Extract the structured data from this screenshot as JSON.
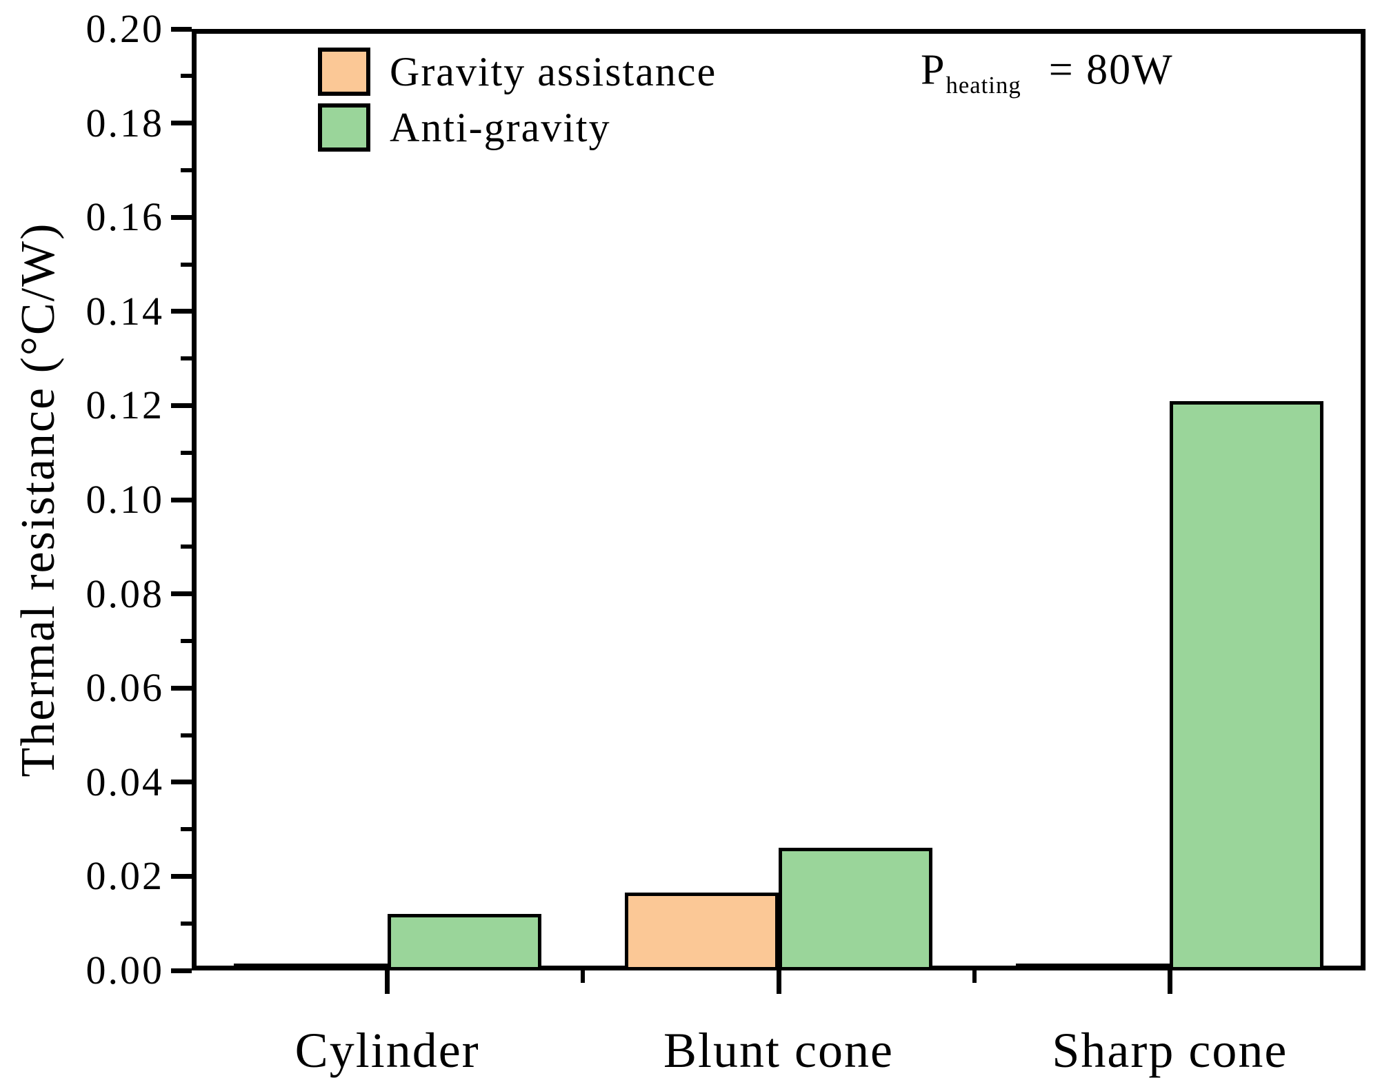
{
  "figure": {
    "background": "#ffffff",
    "axis_color": "#000000"
  },
  "chart_data": {
    "type": "bar",
    "title": "",
    "xlabel": "",
    "ylabel": "Thermal resistance (°C/W)",
    "categories": [
      "Cylinder",
      "Blunt cone",
      "Sharp cone"
    ],
    "series": [
      {
        "name": "Gravity assistance",
        "color": "#FBC896",
        "values": [
          0.001,
          0.0165,
          0.001
        ]
      },
      {
        "name": "Anti-gravity",
        "color": "#9AD59A",
        "values": [
          0.012,
          0.026,
          0.121
        ]
      }
    ],
    "bar_edge_color": "#000000",
    "ylim": [
      0,
      0.2
    ],
    "ytick_step": 0.02,
    "yminor_step": 0.01,
    "ytick_labels": [
      "0.00",
      "0.02",
      "0.04",
      "0.06",
      "0.08",
      "0.10",
      "0.12",
      "0.14",
      "0.16",
      "0.18",
      "0.20"
    ],
    "grid": false,
    "legend": {
      "position": "top-left-inside",
      "entries": [
        "Gravity assistance",
        "Anti-gravity"
      ],
      "annotation": {
        "prefix": "P",
        "subscript": "heating",
        "suffix": "= 80W"
      }
    }
  }
}
